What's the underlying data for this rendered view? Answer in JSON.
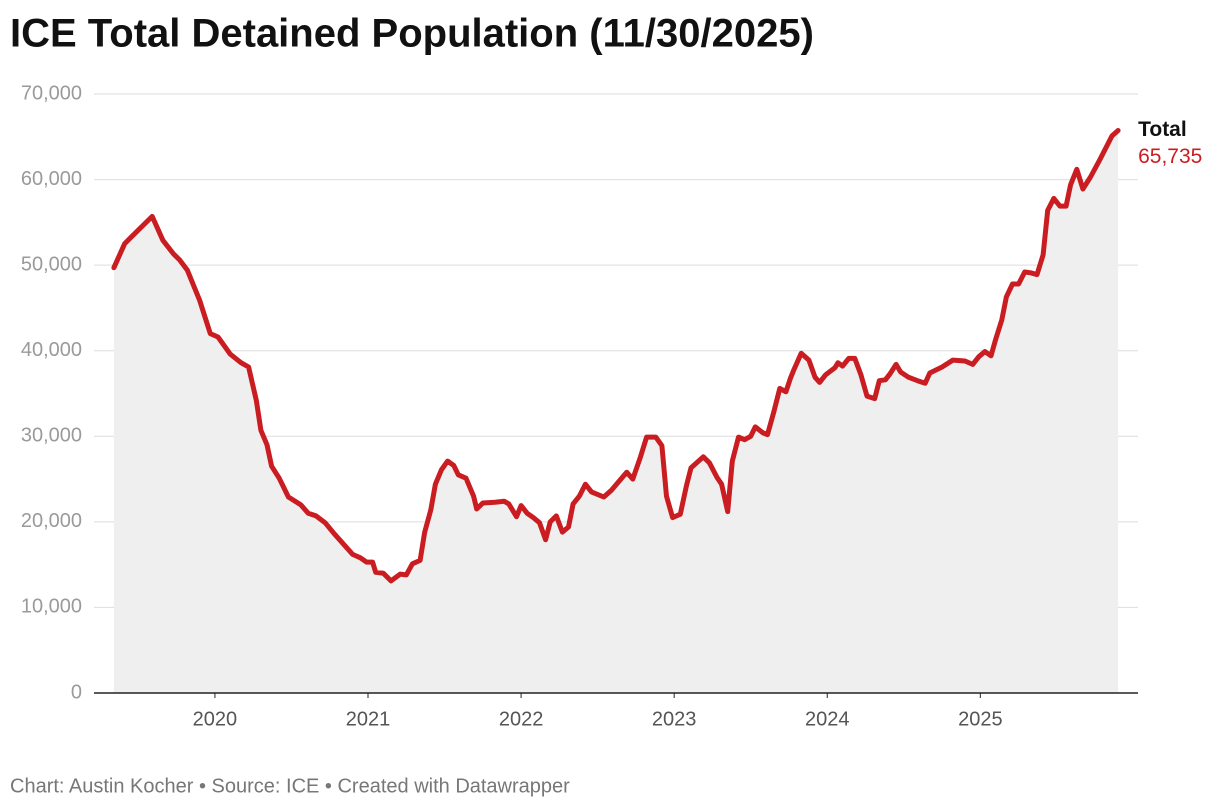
{
  "chart_data": {
    "type": "line",
    "title": "ICE Total Detained Population (11/30/2025)",
    "note": "Chart: Austin Kocher • Source: ICE • Created with Datawrapper",
    "x": [
      2019.34,
      2019.41,
      2019.46,
      2019.59,
      2019.66,
      2019.73,
      2019.77,
      2019.82,
      2019.9,
      2019.97,
      2020.02,
      2020.1,
      2020.17,
      2020.22,
      2020.27,
      2020.3,
      2020.34,
      2020.37,
      2020.42,
      2020.48,
      2020.56,
      2020.61,
      2020.66,
      2020.72,
      2020.78,
      2020.85,
      2020.9,
      2020.95,
      2020.99,
      2021.03,
      2021.05,
      2021.1,
      2021.15,
      2021.21,
      2021.25,
      2021.29,
      2021.34,
      2021.37,
      2021.41,
      2021.44,
      2021.48,
      2021.52,
      2021.56,
      2021.59,
      2021.64,
      2021.69,
      2021.71,
      2021.75,
      2021.83,
      2021.89,
      2021.92,
      2021.97,
      2022.0,
      2022.04,
      2022.08,
      2022.12,
      2022.16,
      2022.19,
      2022.23,
      2022.27,
      2022.31,
      2022.34,
      2022.38,
      2022.42,
      2022.46,
      2022.54,
      2022.59,
      2022.69,
      2022.73,
      2022.78,
      2022.82,
      2022.88,
      2022.92,
      2022.95,
      2022.99,
      2023.04,
      2023.08,
      2023.11,
      2023.19,
      2023.23,
      2023.28,
      2023.31,
      2023.35,
      2023.38,
      2023.42,
      2023.46,
      2023.5,
      2023.53,
      2023.58,
      2023.61,
      2023.65,
      2023.69,
      2023.73,
      2023.76,
      2023.78,
      2023.83,
      2023.88,
      2023.92,
      2023.95,
      2023.99,
      2024.05,
      2024.07,
      2024.1,
      2024.14,
      2024.18,
      2024.22,
      2024.26,
      2024.31,
      2024.34,
      2024.38,
      2024.41,
      2024.45,
      2024.48,
      2024.53,
      2024.59,
      2024.64,
      2024.67,
      2024.75,
      2024.82,
      2024.9,
      2024.95,
      2024.99,
      2025.03,
      2025.07,
      2025.1,
      2025.14,
      2025.17,
      2025.21,
      2025.25,
      2025.29,
      2025.33,
      2025.37,
      2025.41,
      2025.44,
      2025.48,
      2025.52,
      2025.56,
      2025.59,
      2025.63,
      2025.67,
      2025.72,
      2025.78,
      2025.86,
      2025.9
    ],
    "series": [
      {
        "name": "Total",
        "color": "#c91d22",
        "last_label": "65,735",
        "values": [
          49700,
          52500,
          53400,
          55700,
          52900,
          51300,
          50600,
          49400,
          45900,
          42000,
          41600,
          39600,
          38600,
          38100,
          34200,
          30700,
          29000,
          26500,
          25100,
          22900,
          22000,
          21000,
          20700,
          19900,
          18600,
          17200,
          16200,
          15800,
          15300,
          15300,
          14100,
          14000,
          13100,
          13900,
          13800,
          15100,
          15500,
          18800,
          21400,
          24400,
          26100,
          27100,
          26600,
          25500,
          25100,
          23000,
          21500,
          22200,
          22300,
          22400,
          22100,
          20600,
          21900,
          21000,
          20500,
          19900,
          17900,
          20000,
          20700,
          18800,
          19400,
          22100,
          23000,
          24400,
          23500,
          22900,
          23700,
          25800,
          25000,
          27600,
          29900,
          29900,
          28900,
          23000,
          20500,
          20900,
          24200,
          26300,
          27600,
          26900,
          25200,
          24400,
          21200,
          27100,
          29900,
          29600,
          30000,
          31100,
          30400,
          30200,
          32800,
          35600,
          35200,
          36800,
          37700,
          39700,
          38900,
          36900,
          36300,
          37200,
          38000,
          38600,
          38200,
          39100,
          39100,
          37200,
          34700,
          34400,
          36500,
          36600,
          37300,
          38400,
          37500,
          36900,
          36500,
          36200,
          37400,
          38100,
          38900,
          38800,
          38400,
          39300,
          39900,
          39400,
          41300,
          43600,
          46300,
          47800,
          47800,
          49200,
          49100,
          48900,
          51200,
          56400,
          57800,
          56900,
          56900,
          59400,
          61200,
          58900,
          60300,
          62300,
          65100,
          65735
        ]
      }
    ],
    "xlim": [
      2019.21,
      2026.03
    ],
    "xticks": [
      2020,
      2021,
      2022,
      2023,
      2024,
      2025
    ],
    "ylim": [
      0,
      70000
    ],
    "yticks": [
      0,
      {
        "value": 10000,
        "label": "10,000"
      },
      {
        "value": 20000,
        "label": "20,000"
      },
      {
        "value": 30000,
        "label": "30,000"
      },
      {
        "value": 40000,
        "label": "40,000"
      },
      {
        "value": 50000,
        "label": "50,000"
      },
      {
        "value": 60000,
        "label": "60,000"
      },
      {
        "value": 70000,
        "label": "70,000"
      }
    ],
    "grid": true,
    "area_color": "#efefef"
  }
}
